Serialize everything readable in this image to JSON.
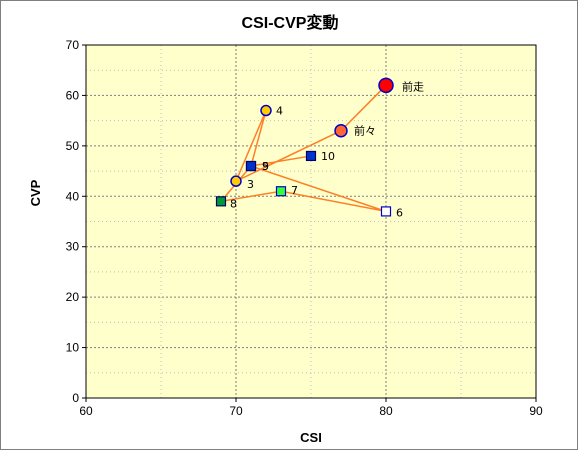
{
  "chart_data": {
    "type": "scatter",
    "title": "CSI-CVP変動",
    "xlabel": "CSI",
    "ylabel": "CVP",
    "xlim": [
      60,
      90
    ],
    "ylim": [
      0,
      70
    ],
    "x_ticks": [
      60,
      70,
      80,
      90
    ],
    "y_ticks": [
      0,
      10,
      20,
      30,
      40,
      50,
      60,
      70
    ],
    "grid": true,
    "legend": "none",
    "colors": {
      "plot_background": "#ffffcc",
      "line": "#ff7f27",
      "major_grid": "#7f7f7f",
      "minor_grid": "#bfbfbf"
    },
    "points": [
      {
        "label": "前走",
        "x": 80,
        "y": 62,
        "shape": "circle",
        "fill": "#ff0000",
        "stroke": "#0000cc"
      },
      {
        "label": "前々",
        "x": 77,
        "y": 53,
        "shape": "circle",
        "fill": "#ff6633",
        "stroke": "#0000cc"
      },
      {
        "label": "3",
        "x": 70,
        "y": 43,
        "shape": "circle",
        "fill": "#ffcc00",
        "stroke": "#0000cc"
      },
      {
        "label": "4",
        "x": 72,
        "y": 57,
        "shape": "circle",
        "fill": "#ffcc00",
        "stroke": "#0000cc"
      },
      {
        "label": "5",
        "x": 71,
        "y": 46,
        "shape": "square",
        "fill": "#0033cc",
        "stroke": "#000066"
      },
      {
        "label": "6",
        "x": 80,
        "y": 37,
        "shape": "square",
        "fill": "#ffffff",
        "stroke": "#0000cc"
      },
      {
        "label": "7",
        "x": 73,
        "y": 41,
        "shape": "square",
        "fill": "#33ff33",
        "stroke": "#0000cc"
      },
      {
        "label": "8",
        "x": 69,
        "y": 39,
        "shape": "square",
        "fill": "#009933",
        "stroke": "#000066"
      },
      {
        "label": "9",
        "x": 71,
        "y": 46,
        "shape": "square",
        "fill": "#0033cc",
        "stroke": "#000066"
      },
      {
        "label": "10",
        "x": 75,
        "y": 48,
        "shape": "square",
        "fill": "#0033cc",
        "stroke": "#000066"
      }
    ],
    "path_order": [
      "前走",
      "前々",
      "3",
      "4",
      "5",
      "6",
      "7",
      "8",
      "9",
      "10"
    ]
  }
}
